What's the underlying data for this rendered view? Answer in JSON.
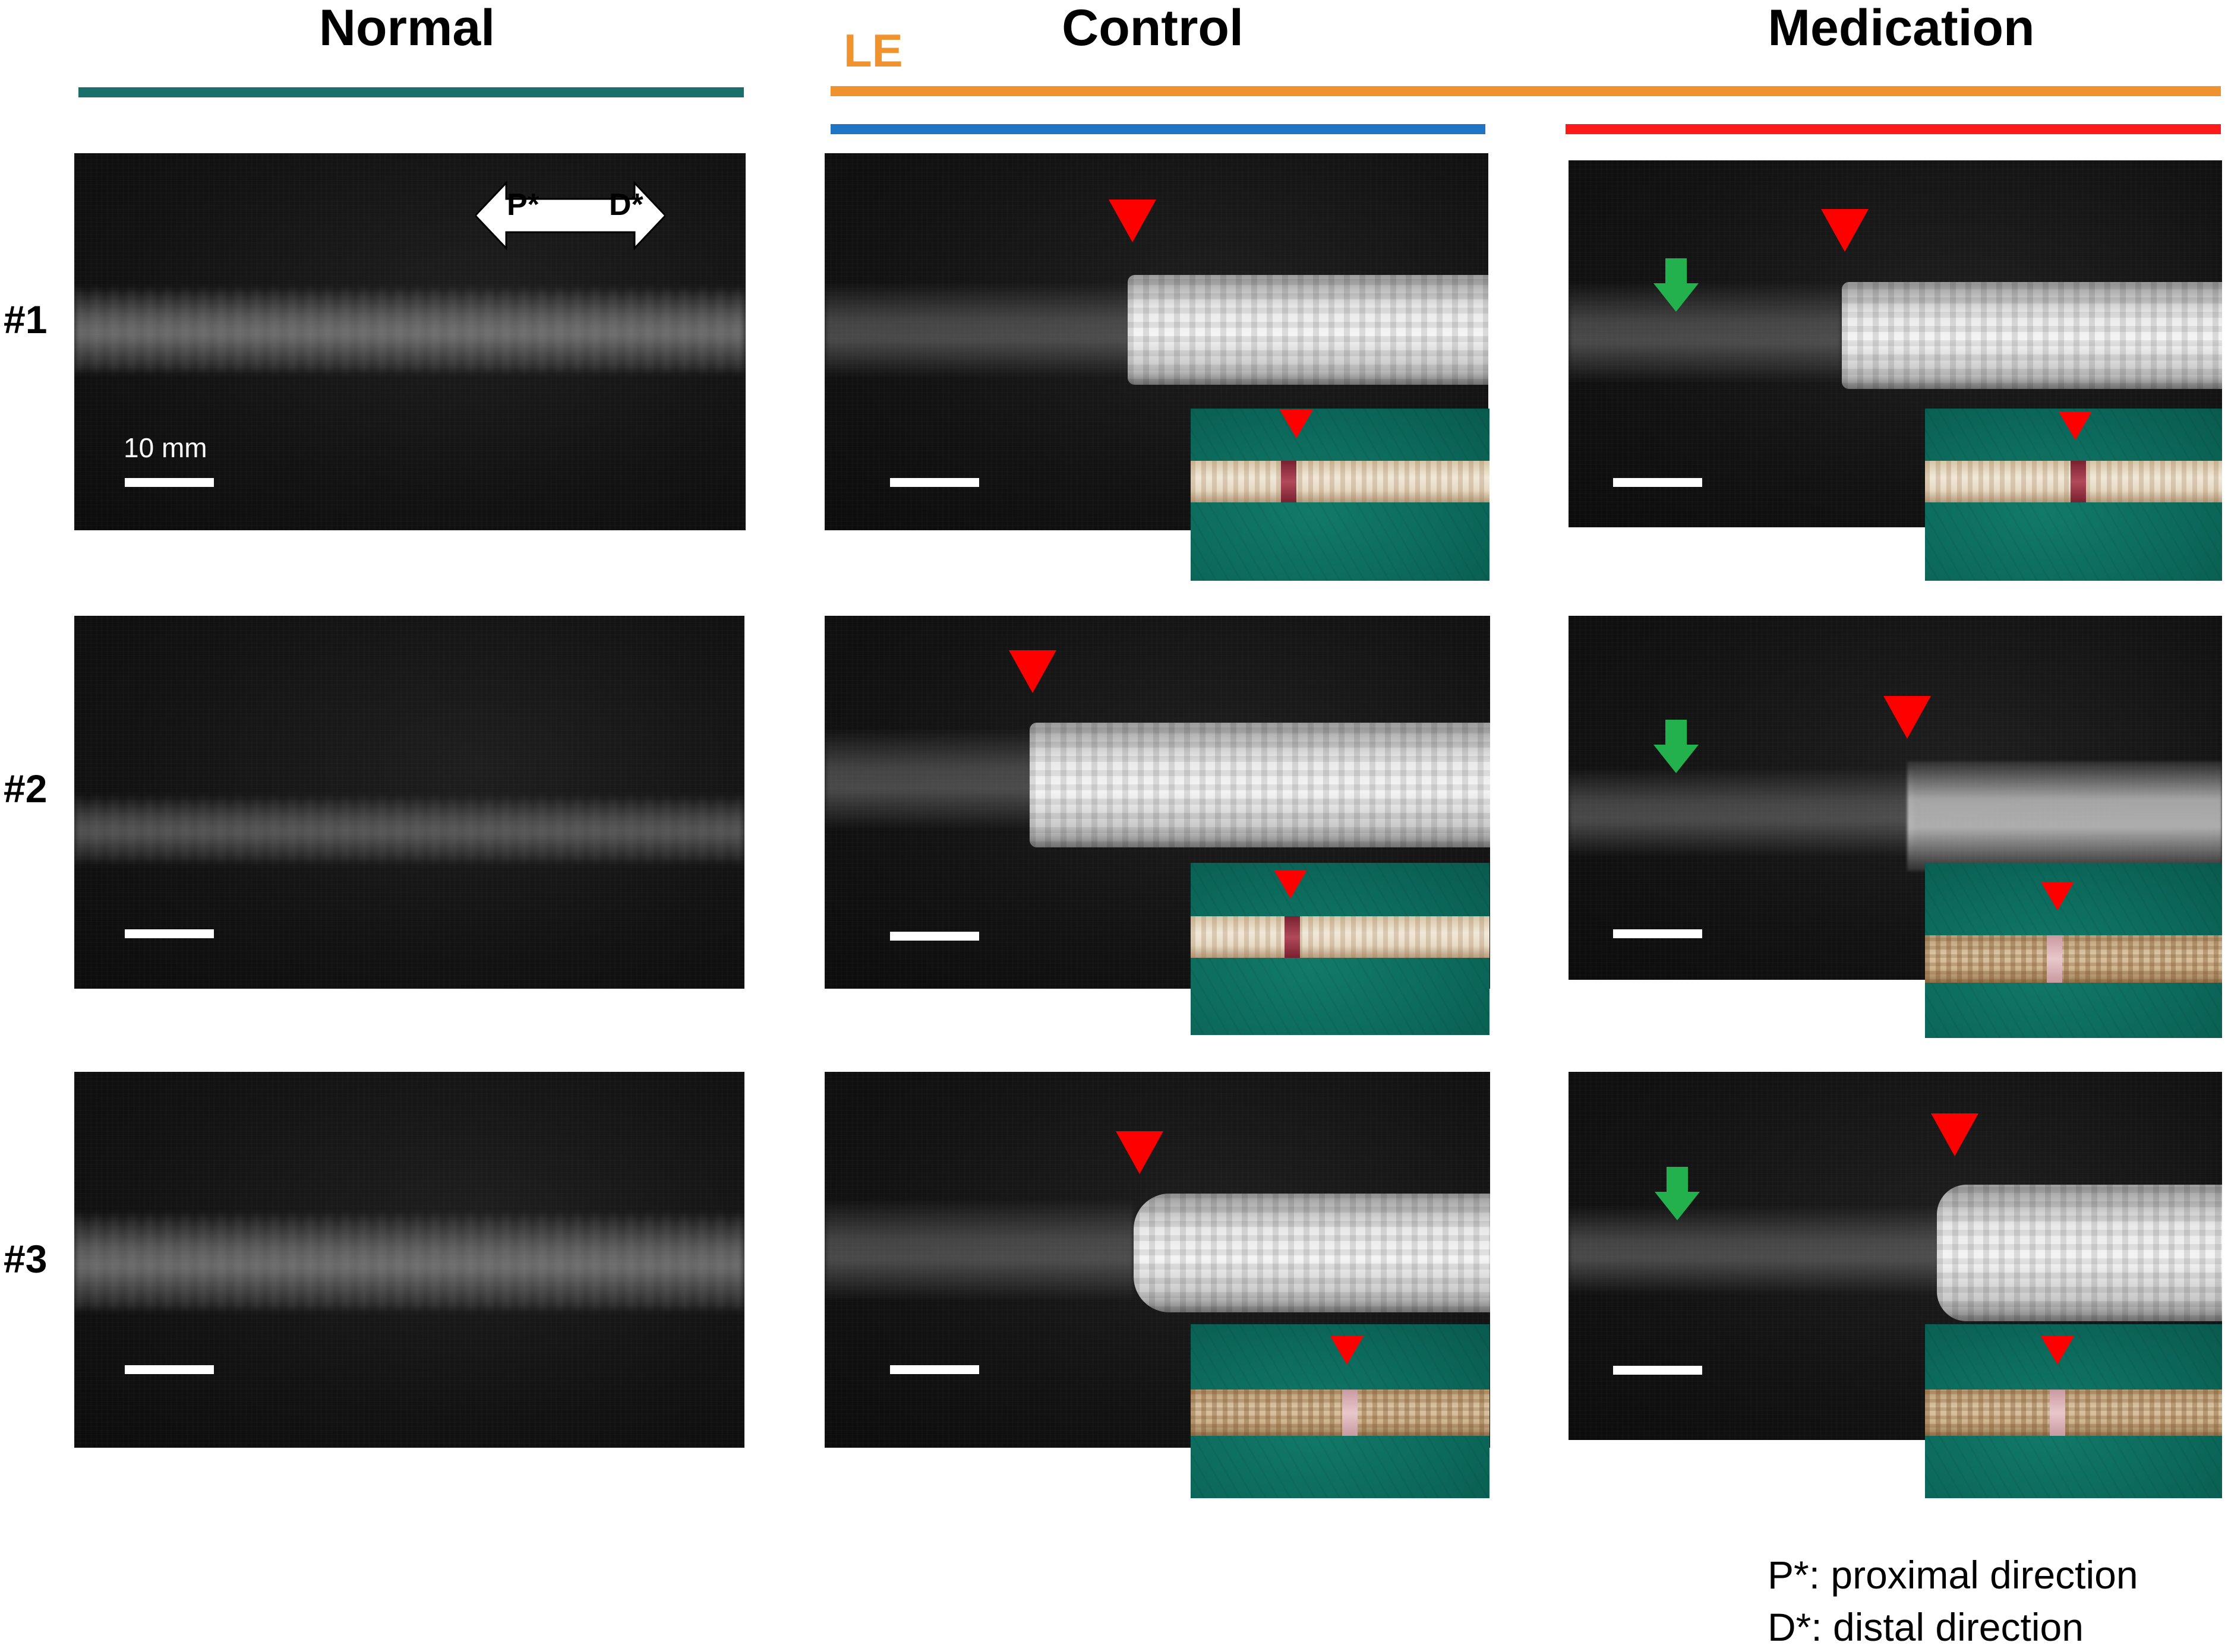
{
  "headers": {
    "normal": "Normal",
    "le": "LE",
    "control": "Control",
    "medication": "Medication"
  },
  "row_labels": [
    "#1",
    "#2",
    "#3"
  ],
  "scale_bar": {
    "label": "10 mm"
  },
  "direction_arrow": {
    "proximal": "P*",
    "distal": "D*"
  },
  "legend": {
    "line1": "P*: proximal direction",
    "line2": "D*: distal direction"
  },
  "colors": {
    "normal_bar": "#1b6f6b",
    "le_bar": "#f0932f",
    "control_bar": "#1f74c6",
    "medication_bar": "#ff1a1a",
    "marker_red": "#ff0000",
    "arrow_green": "#23b14d"
  },
  "icons": {
    "lesion_marker": "red-triangle-icon",
    "medication_marker": "green-down-arrow-icon",
    "direction": "double-headed-arrow-icon"
  }
}
